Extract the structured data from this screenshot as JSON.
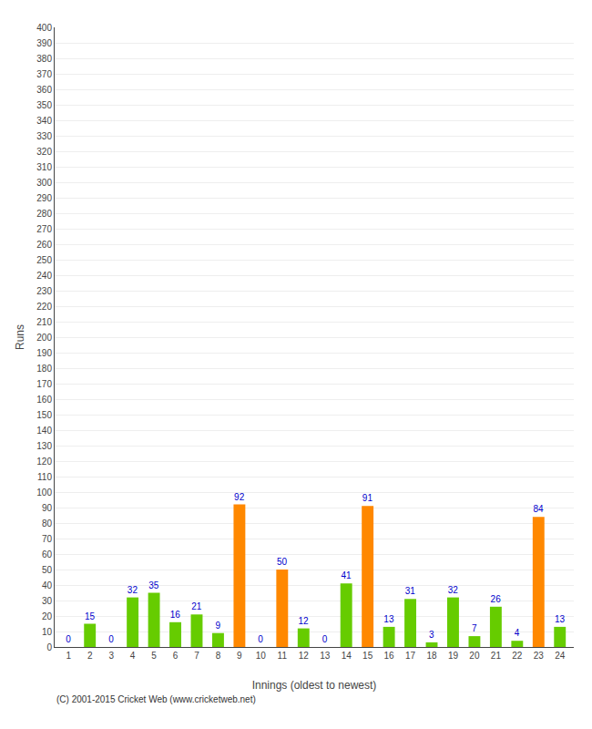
{
  "chart_data": {
    "type": "bar",
    "xlabel": "Innings (oldest to newest)",
    "ylabel": "Runs",
    "categories": [
      1,
      2,
      3,
      4,
      5,
      6,
      7,
      8,
      9,
      10,
      11,
      12,
      13,
      14,
      15,
      16,
      17,
      18,
      19,
      20,
      21,
      22,
      23,
      24
    ],
    "values": [
      0,
      15,
      0,
      32,
      35,
      16,
      21,
      9,
      92,
      0,
      50,
      12,
      0,
      41,
      91,
      13,
      31,
      3,
      32,
      7,
      26,
      4,
      84,
      13
    ],
    "colors": [
      "#66cc00",
      "#66cc00",
      "#66cc00",
      "#66cc00",
      "#66cc00",
      "#66cc00",
      "#66cc00",
      "#66cc00",
      "#ff8800",
      "#66cc00",
      "#ff8800",
      "#66cc00",
      "#66cc00",
      "#66cc00",
      "#ff8800",
      "#66cc00",
      "#66cc00",
      "#66cc00",
      "#66cc00",
      "#66cc00",
      "#66cc00",
      "#66cc00",
      "#ff8800",
      "#66cc00"
    ],
    "data_labels": true,
    "ylim": [
      0,
      400
    ],
    "yticks": [
      0,
      10,
      20,
      30,
      40,
      50,
      60,
      70,
      80,
      90,
      100,
      110,
      120,
      130,
      140,
      150,
      160,
      170,
      180,
      190,
      200,
      210,
      220,
      230,
      240,
      250,
      260,
      270,
      280,
      290,
      300,
      310,
      320,
      330,
      340,
      350,
      360,
      370,
      380,
      390,
      400
    ],
    "grid": true,
    "annotations": [
      "(C) 2001-2015 Cricket Web (www.cricketweb.net)"
    ]
  }
}
